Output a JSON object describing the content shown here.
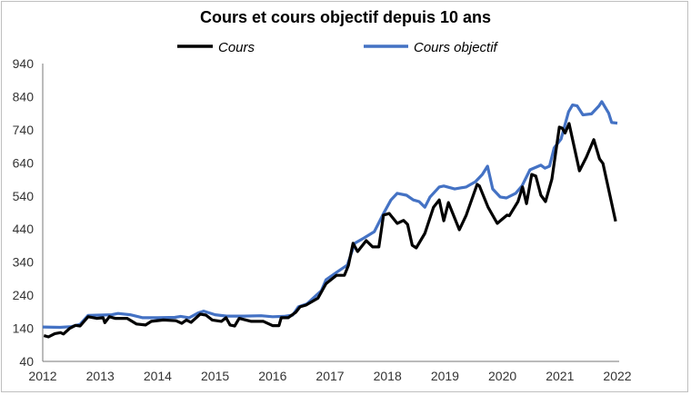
{
  "chart_data": {
    "type": "line",
    "title": "Cours et cours objectif depuis 10 ans",
    "xlabel": "",
    "ylabel": "",
    "xlim": [
      2012,
      2022
    ],
    "ylim": [
      40,
      940
    ],
    "x_ticks": [
      "2012",
      "2013",
      "2014",
      "2015",
      "2016",
      "2017",
      "2018",
      "2019",
      "2020",
      "2021",
      "2022"
    ],
    "y_ticks": [
      "40",
      "140",
      "240",
      "340",
      "440",
      "540",
      "640",
      "740",
      "840",
      "940"
    ],
    "grid": false,
    "legend": "top",
    "series": [
      {
        "name": "Cours",
        "color": "#000000",
        "points": [
          [
            2012.02,
            118
          ],
          [
            2012.1,
            114
          ],
          [
            2012.21,
            124
          ],
          [
            2012.31,
            127
          ],
          [
            2012.36,
            123
          ],
          [
            2012.47,
            140
          ],
          [
            2012.57,
            149
          ],
          [
            2012.65,
            147
          ],
          [
            2012.79,
            175
          ],
          [
            2012.94,
            170
          ],
          [
            2013.05,
            172
          ],
          [
            2013.08,
            157
          ],
          [
            2013.16,
            175
          ],
          [
            2013.26,
            170
          ],
          [
            2013.47,
            170
          ],
          [
            2013.63,
            153
          ],
          [
            2013.79,
            150
          ],
          [
            2013.89,
            161
          ],
          [
            2014.1,
            165
          ],
          [
            2014.32,
            163
          ],
          [
            2014.42,
            155
          ],
          [
            2014.5,
            165
          ],
          [
            2014.58,
            158
          ],
          [
            2014.74,
            183
          ],
          [
            2014.84,
            180
          ],
          [
            2014.95,
            165
          ],
          [
            2015.11,
            161
          ],
          [
            2015.19,
            172
          ],
          [
            2015.26,
            150
          ],
          [
            2015.34,
            147
          ],
          [
            2015.42,
            170
          ],
          [
            2015.63,
            161
          ],
          [
            2015.84,
            161
          ],
          [
            2016.0,
            148
          ],
          [
            2016.11,
            148
          ],
          [
            2016.15,
            172
          ],
          [
            2016.27,
            172
          ],
          [
            2016.4,
            188
          ],
          [
            2016.48,
            205
          ],
          [
            2016.58,
            210
          ],
          [
            2016.79,
            231
          ],
          [
            2016.93,
            275
          ],
          [
            2017.11,
            300
          ],
          [
            2017.25,
            300
          ],
          [
            2017.32,
            330
          ],
          [
            2017.4,
            397
          ],
          [
            2017.48,
            372
          ],
          [
            2017.63,
            405
          ],
          [
            2017.74,
            386
          ],
          [
            2017.85,
            386
          ],
          [
            2017.93,
            482
          ],
          [
            2018.03,
            487
          ],
          [
            2018.17,
            457
          ],
          [
            2018.28,
            466
          ],
          [
            2018.35,
            454
          ],
          [
            2018.43,
            391
          ],
          [
            2018.5,
            383
          ],
          [
            2018.65,
            427
          ],
          [
            2018.8,
            506
          ],
          [
            2018.9,
            528
          ],
          [
            2018.98,
            465
          ],
          [
            2019.06,
            520
          ],
          [
            2019.25,
            438
          ],
          [
            2019.37,
            482
          ],
          [
            2019.56,
            575
          ],
          [
            2019.6,
            570
          ],
          [
            2019.75,
            506
          ],
          [
            2019.91,
            457
          ],
          [
            2020.08,
            482
          ],
          [
            2020.12,
            480
          ],
          [
            2020.27,
            523
          ],
          [
            2020.35,
            567
          ],
          [
            2020.42,
            517
          ],
          [
            2020.51,
            605
          ],
          [
            2020.58,
            600
          ],
          [
            2020.67,
            542
          ],
          [
            2020.75,
            523
          ],
          [
            2020.86,
            591
          ],
          [
            2020.99,
            748
          ],
          [
            2021.04,
            745
          ],
          [
            2021.09,
            730
          ],
          [
            2021.16,
            759
          ],
          [
            2021.34,
            616
          ],
          [
            2021.46,
            657
          ],
          [
            2021.59,
            710
          ],
          [
            2021.69,
            652
          ],
          [
            2021.75,
            638
          ],
          [
            2021.97,
            463
          ]
        ]
      },
      {
        "name": "Cours objectif",
        "color": "#4472c4",
        "points": [
          [
            2012.0,
            144
          ],
          [
            2012.3,
            143
          ],
          [
            2012.5,
            145
          ],
          [
            2012.65,
            152
          ],
          [
            2012.79,
            179
          ],
          [
            2013.0,
            180
          ],
          [
            2013.2,
            181
          ],
          [
            2013.31,
            185
          ],
          [
            2013.52,
            181
          ],
          [
            2013.74,
            172
          ],
          [
            2014.0,
            172
          ],
          [
            2014.3,
            173
          ],
          [
            2014.4,
            176
          ],
          [
            2014.55,
            172
          ],
          [
            2014.7,
            186
          ],
          [
            2014.8,
            192
          ],
          [
            2015.0,
            181
          ],
          [
            2015.2,
            177
          ],
          [
            2015.5,
            177
          ],
          [
            2015.8,
            178
          ],
          [
            2016.0,
            175
          ],
          [
            2016.2,
            176
          ],
          [
            2016.35,
            180
          ],
          [
            2016.45,
            205
          ],
          [
            2016.6,
            214
          ],
          [
            2016.85,
            254
          ],
          [
            2016.93,
            287
          ],
          [
            2017.11,
            309
          ],
          [
            2017.3,
            331
          ],
          [
            2017.43,
            397
          ],
          [
            2017.59,
            413
          ],
          [
            2017.77,
            432
          ],
          [
            2017.93,
            487
          ],
          [
            2018.06,
            528
          ],
          [
            2018.17,
            548
          ],
          [
            2018.33,
            542
          ],
          [
            2018.45,
            528
          ],
          [
            2018.55,
            523
          ],
          [
            2018.65,
            506
          ],
          [
            2018.74,
            537
          ],
          [
            2018.9,
            567
          ],
          [
            2018.98,
            570
          ],
          [
            2019.17,
            561
          ],
          [
            2019.37,
            567
          ],
          [
            2019.53,
            583
          ],
          [
            2019.65,
            605
          ],
          [
            2019.74,
            630
          ],
          [
            2019.83,
            561
          ],
          [
            2019.96,
            537
          ],
          [
            2020.07,
            534
          ],
          [
            2020.23,
            548
          ],
          [
            2020.34,
            570
          ],
          [
            2020.48,
            619
          ],
          [
            2020.67,
            633
          ],
          [
            2020.74,
            624
          ],
          [
            2020.82,
            630
          ],
          [
            2020.9,
            685
          ],
          [
            2021.02,
            712
          ],
          [
            2021.15,
            794
          ],
          [
            2021.22,
            815
          ],
          [
            2021.3,
            812
          ],
          [
            2021.4,
            785
          ],
          [
            2021.55,
            788
          ],
          [
            2021.68,
            812
          ],
          [
            2021.73,
            825
          ],
          [
            2021.85,
            790
          ],
          [
            2021.9,
            762
          ],
          [
            2022.0,
            760
          ]
        ]
      }
    ]
  }
}
